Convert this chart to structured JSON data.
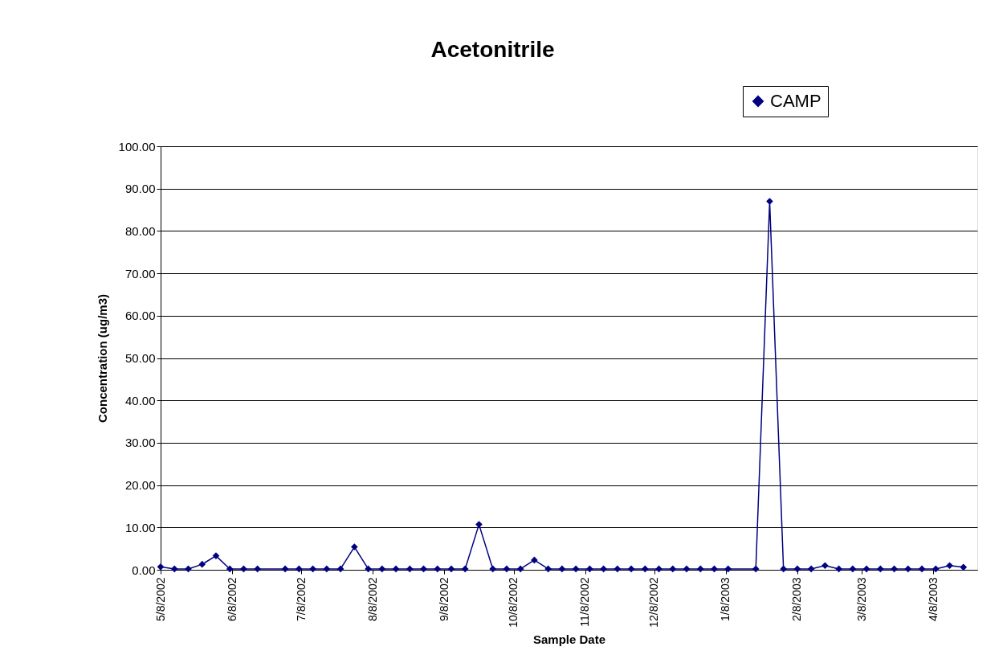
{
  "chart_data": {
    "type": "line",
    "title": "Acetonitrile",
    "xlabel": "Sample Date",
    "ylabel": "Concentration (ug/m3)",
    "x": [
      "2002-05-08",
      "2002-05-14",
      "2002-05-20",
      "2002-05-26",
      "2002-06-01",
      "2002-06-07",
      "2002-06-13",
      "2002-06-19",
      "2002-07-01",
      "2002-07-07",
      "2002-07-13",
      "2002-07-19",
      "2002-07-25",
      "2002-07-31",
      "2002-08-06",
      "2002-08-12",
      "2002-08-18",
      "2002-08-24",
      "2002-08-30",
      "2002-09-05",
      "2002-09-11",
      "2002-09-17",
      "2002-09-23",
      "2002-09-29",
      "2002-10-05",
      "2002-10-11",
      "2002-10-17",
      "2002-10-23",
      "2002-10-29",
      "2002-11-04",
      "2002-11-10",
      "2002-11-16",
      "2002-11-22",
      "2002-11-28",
      "2002-12-04",
      "2002-12-10",
      "2002-12-16",
      "2002-12-22",
      "2002-12-28",
      "2003-01-03",
      "2003-01-09",
      "2003-01-21",
      "2003-01-27",
      "2003-02-02",
      "2003-02-08",
      "2003-02-14",
      "2003-02-20",
      "2003-02-26",
      "2003-03-04",
      "2003-03-10",
      "2003-03-16",
      "2003-03-22",
      "2003-03-28",
      "2003-04-03",
      "2003-04-09",
      "2003-04-15",
      "2003-04-21"
    ],
    "series": [
      {
        "name": "CAMP",
        "color": "#000080",
        "values": [
          0.7,
          0.2,
          0.2,
          1.3,
          3.3,
          0.2,
          0.2,
          0.2,
          0.2,
          0.2,
          0.2,
          0.2,
          0.2,
          5.4,
          0.2,
          0.2,
          0.2,
          0.2,
          0.2,
          0.2,
          0.2,
          0.2,
          10.7,
          0.2,
          0.2,
          0.2,
          2.3,
          0.2,
          0.2,
          0.2,
          0.2,
          0.2,
          0.2,
          0.2,
          0.2,
          0.2,
          0.2,
          0.2,
          0.2,
          0.2,
          0.2,
          0.2,
          87,
          0.2,
          0.2,
          0.2,
          1.0,
          0.2,
          0.2,
          0.2,
          0.2,
          0.2,
          0.2,
          0.2,
          0.2,
          1.0,
          0.6
        ]
      }
    ],
    "xlim": [
      "2002-05-08",
      "2003-04-27"
    ],
    "xticks": [
      {
        "value": "2002-05-08",
        "label": "5/8/2002"
      },
      {
        "value": "2002-06-08",
        "label": "6/8/2002"
      },
      {
        "value": "2002-07-08",
        "label": "7/8/2002"
      },
      {
        "value": "2002-08-08",
        "label": "8/8/2002"
      },
      {
        "value": "2002-09-08",
        "label": "9/8/2002"
      },
      {
        "value": "2002-10-08",
        "label": "10/8/2002"
      },
      {
        "value": "2002-11-08",
        "label": "11/8/2002"
      },
      {
        "value": "2002-12-08",
        "label": "12/8/2002"
      },
      {
        "value": "2003-01-08",
        "label": "1/8/2003"
      },
      {
        "value": "2003-02-08",
        "label": "2/8/2003"
      },
      {
        "value": "2003-03-08",
        "label": "3/8/2003"
      },
      {
        "value": "2003-04-08",
        "label": "4/8/2003"
      }
    ],
    "ylim": [
      0,
      100
    ],
    "yticks": [
      {
        "value": 0,
        "label": "0.00"
      },
      {
        "value": 10,
        "label": "10.00"
      },
      {
        "value": 20,
        "label": "20.00"
      },
      {
        "value": 30,
        "label": "30.00"
      },
      {
        "value": 40,
        "label": "40.00"
      },
      {
        "value": 50,
        "label": "50.00"
      },
      {
        "value": 60,
        "label": "60.00"
      },
      {
        "value": 70,
        "label": "70.00"
      },
      {
        "value": 80,
        "label": "80.00"
      },
      {
        "value": 90,
        "label": "90.00"
      },
      {
        "value": 100,
        "label": "100.00"
      }
    ],
    "grid": "y",
    "legend": "top right",
    "marker": "diamond",
    "line_style": "solid"
  }
}
